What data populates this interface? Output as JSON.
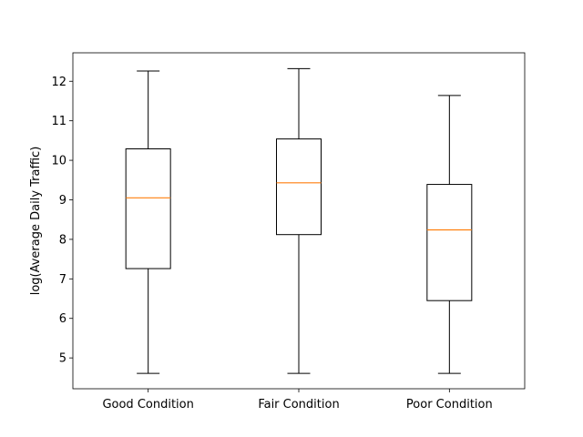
{
  "chart_data": {
    "type": "box",
    "categories": [
      "Good Condition",
      "Fair Condition",
      "Poor Condition"
    ],
    "boxes": [
      {
        "whisker_low": 4.61,
        "q1": 7.26,
        "median": 9.05,
        "q3": 10.29,
        "whisker_high": 12.26
      },
      {
        "whisker_low": 4.61,
        "q1": 8.12,
        "median": 9.43,
        "q3": 10.54,
        "whisker_high": 12.32
      },
      {
        "whisker_low": 4.61,
        "q1": 6.45,
        "median": 8.24,
        "q3": 9.39,
        "whisker_high": 11.64
      }
    ],
    "ylabel": "log(Average Daily Traffic)",
    "xlabel": "",
    "title": "",
    "ylim": [
      4.22,
      12.72
    ],
    "yticks": [
      5,
      6,
      7,
      8,
      9,
      10,
      11,
      12
    ],
    "grid": false,
    "median_color": "#ff7f0e",
    "box_color": "#000000"
  }
}
